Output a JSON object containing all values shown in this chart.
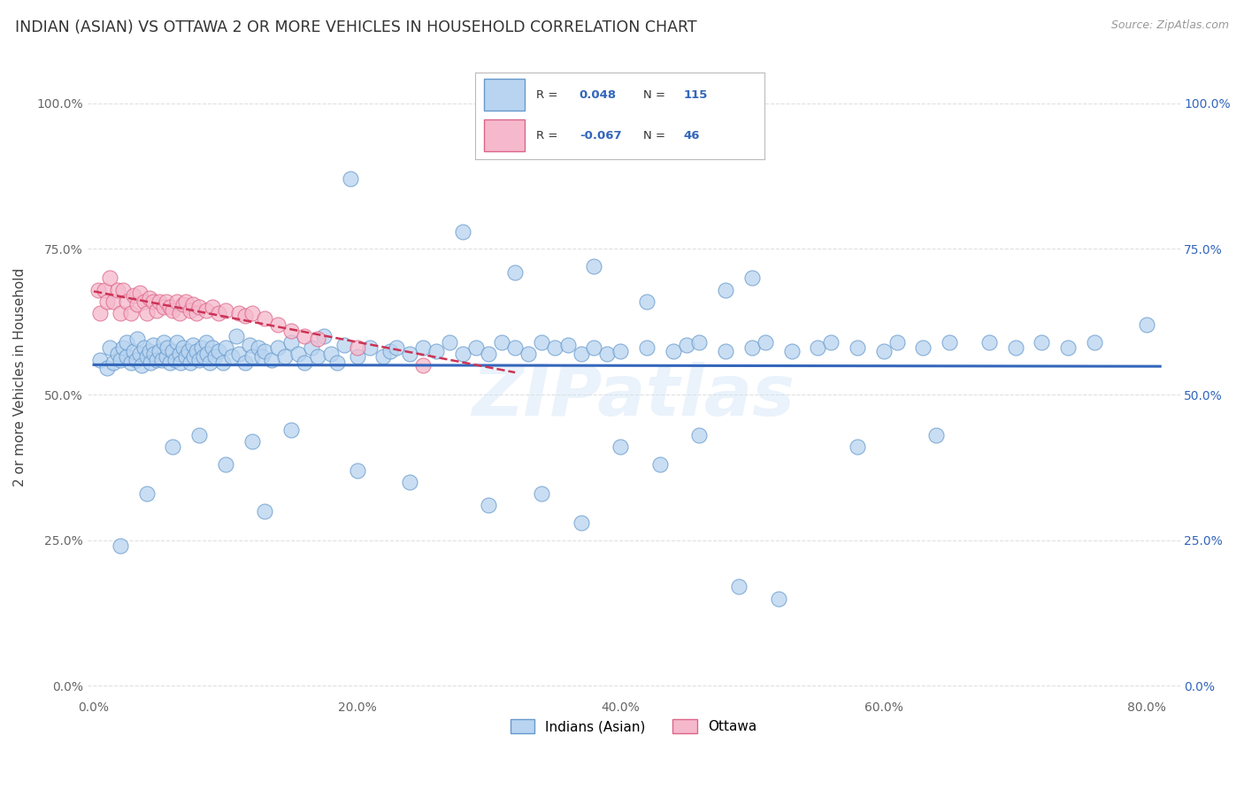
{
  "title": "INDIAN (ASIAN) VS OTTAWA 2 OR MORE VEHICLES IN HOUSEHOLD CORRELATION CHART",
  "source": "Source: ZipAtlas.com",
  "ylabel": "2 or more Vehicles in Household",
  "xlim_min": -0.005,
  "xlim_max": 0.825,
  "ylim_min": -0.02,
  "ylim_max": 1.08,
  "xtick_vals": [
    0.0,
    0.2,
    0.4,
    0.6,
    0.8
  ],
  "xtick_labels": [
    "0.0%",
    "20.0%",
    "40.0%",
    "60.0%",
    "80.0%"
  ],
  "ytick_vals": [
    0.0,
    0.25,
    0.5,
    0.75,
    1.0
  ],
  "ytick_labels": [
    "0.0%",
    "25.0%",
    "50.0%",
    "75.0%",
    "100.0%"
  ],
  "blue_R": "0.048",
  "blue_N": "115",
  "pink_R": "-0.067",
  "pink_N": "46",
  "blue_fill": "#b8d4f0",
  "pink_fill": "#f5b8cc",
  "blue_edge": "#6699cc",
  "pink_edge": "#dd6688",
  "blue_line": "#3366bb",
  "pink_line": "#cc3355",
  "legend_blue": "Indians (Asian)",
  "legend_pink": "Ottawa",
  "watermark": "ZIPatlas",
  "bg": "#ffffff",
  "grid_color": "#e0e0e0",
  "blue_x": [
    0.005,
    0.01,
    0.012,
    0.015,
    0.018,
    0.02,
    0.022,
    0.025,
    0.025,
    0.028,
    0.03,
    0.032,
    0.033,
    0.035,
    0.036,
    0.038,
    0.04,
    0.042,
    0.043,
    0.045,
    0.046,
    0.048,
    0.05,
    0.052,
    0.053,
    0.055,
    0.056,
    0.058,
    0.06,
    0.062,
    0.063,
    0.065,
    0.066,
    0.068,
    0.07,
    0.072,
    0.073,
    0.075,
    0.076,
    0.078,
    0.08,
    0.082,
    0.083,
    0.085,
    0.086,
    0.088,
    0.09,
    0.092,
    0.095,
    0.098,
    0.1,
    0.105,
    0.108,
    0.11,
    0.115,
    0.118,
    0.12,
    0.125,
    0.128,
    0.13,
    0.135,
    0.14,
    0.145,
    0.15,
    0.155,
    0.16,
    0.165,
    0.17,
    0.175,
    0.18,
    0.185,
    0.19,
    0.2,
    0.21,
    0.22,
    0.225,
    0.23,
    0.24,
    0.25,
    0.26,
    0.27,
    0.28,
    0.29,
    0.3,
    0.31,
    0.32,
    0.33,
    0.34,
    0.35,
    0.36,
    0.37,
    0.38,
    0.39,
    0.4,
    0.42,
    0.44,
    0.45,
    0.46,
    0.48,
    0.5,
    0.51,
    0.53,
    0.55,
    0.56,
    0.58,
    0.6,
    0.61,
    0.63,
    0.65,
    0.68,
    0.7,
    0.72,
    0.74,
    0.76,
    0.8
  ],
  "blue_y": [
    0.56,
    0.545,
    0.58,
    0.555,
    0.57,
    0.56,
    0.58,
    0.565,
    0.59,
    0.555,
    0.575,
    0.56,
    0.595,
    0.57,
    0.55,
    0.58,
    0.565,
    0.575,
    0.555,
    0.585,
    0.57,
    0.56,
    0.575,
    0.56,
    0.59,
    0.565,
    0.58,
    0.555,
    0.575,
    0.56,
    0.59,
    0.57,
    0.555,
    0.58,
    0.565,
    0.575,
    0.555,
    0.585,
    0.565,
    0.575,
    0.56,
    0.58,
    0.565,
    0.59,
    0.57,
    0.555,
    0.58,
    0.565,
    0.575,
    0.555,
    0.58,
    0.565,
    0.6,
    0.57,
    0.555,
    0.585,
    0.565,
    0.58,
    0.565,
    0.575,
    0.56,
    0.58,
    0.565,
    0.59,
    0.57,
    0.555,
    0.58,
    0.565,
    0.6,
    0.57,
    0.555,
    0.585,
    0.565,
    0.58,
    0.565,
    0.575,
    0.58,
    0.57,
    0.58,
    0.575,
    0.59,
    0.57,
    0.58,
    0.57,
    0.59,
    0.58,
    0.57,
    0.59,
    0.58,
    0.585,
    0.57,
    0.58,
    0.57,
    0.575,
    0.58,
    0.575,
    0.585,
    0.59,
    0.575,
    0.58,
    0.59,
    0.575,
    0.58,
    0.59,
    0.58,
    0.575,
    0.59,
    0.58,
    0.59,
    0.59,
    0.58,
    0.59,
    0.58,
    0.59,
    0.62
  ],
  "blue_x_outliers": [
    0.195,
    0.28,
    0.32,
    0.38,
    0.42,
    0.48,
    0.5,
    0.58,
    0.64,
    0.13,
    0.2,
    0.24,
    0.3,
    0.34,
    0.37,
    0.4,
    0.43,
    0.46,
    0.49,
    0.52,
    0.02,
    0.04,
    0.06,
    0.08,
    0.1,
    0.12,
    0.15
  ],
  "blue_y_outliers": [
    0.87,
    0.78,
    0.71,
    0.72,
    0.66,
    0.68,
    0.7,
    0.41,
    0.43,
    0.3,
    0.37,
    0.35,
    0.31,
    0.33,
    0.28,
    0.41,
    0.38,
    0.43,
    0.17,
    0.15,
    0.24,
    0.33,
    0.41,
    0.43,
    0.38,
    0.42,
    0.44
  ],
  "pink_x": [
    0.003,
    0.005,
    0.008,
    0.01,
    0.012,
    0.015,
    0.018,
    0.02,
    0.022,
    0.025,
    0.028,
    0.03,
    0.033,
    0.035,
    0.038,
    0.04,
    0.042,
    0.045,
    0.048,
    0.05,
    0.053,
    0.055,
    0.058,
    0.06,
    0.063,
    0.065,
    0.068,
    0.07,
    0.073,
    0.075,
    0.078,
    0.08,
    0.085,
    0.09,
    0.095,
    0.1,
    0.11,
    0.115,
    0.12,
    0.13,
    0.14,
    0.15,
    0.16,
    0.17,
    0.2,
    0.25
  ],
  "pink_y": [
    0.68,
    0.64,
    0.68,
    0.66,
    0.7,
    0.66,
    0.68,
    0.64,
    0.68,
    0.66,
    0.64,
    0.67,
    0.655,
    0.675,
    0.66,
    0.64,
    0.665,
    0.66,
    0.645,
    0.66,
    0.65,
    0.66,
    0.65,
    0.645,
    0.66,
    0.64,
    0.655,
    0.66,
    0.645,
    0.655,
    0.64,
    0.65,
    0.645,
    0.65,
    0.64,
    0.645,
    0.64,
    0.635,
    0.64,
    0.63,
    0.62,
    0.61,
    0.6,
    0.595,
    0.58,
    0.55
  ]
}
